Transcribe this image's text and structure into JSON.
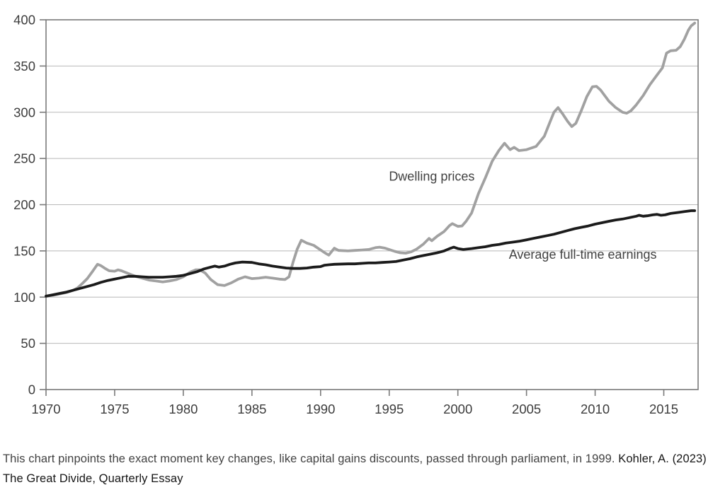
{
  "chart_data": {
    "type": "line",
    "title": "",
    "xlabel": "",
    "ylabel": "",
    "xlim": [
      1970,
      2017.5
    ],
    "ylim": [
      0,
      400
    ],
    "x_ticks": [
      "1970",
      "1975",
      "1980",
      "1985",
      "1990",
      "1995",
      "2000",
      "2005",
      "2010",
      "2015"
    ],
    "x_tick_values": [
      1970,
      1975,
      1980,
      1985,
      1990,
      1995,
      2000,
      2005,
      2010,
      2015
    ],
    "y_ticks": [
      "0",
      "50",
      "100",
      "150",
      "200",
      "250",
      "300",
      "350",
      "400"
    ],
    "y_tick_values": [
      0,
      50,
      100,
      150,
      200,
      250,
      300,
      350,
      400
    ],
    "grid": "horizontal",
    "legend_position": "inline-annotations",
    "colors": {
      "grid": "#b8b8b8",
      "axis": "#7a7a7a",
      "tick_text": "#3d3d3d",
      "dwelling_line": "#a1a1a1",
      "earnings_line": "#1b1b1b"
    },
    "series": [
      {
        "id": "dwelling-prices",
        "name": "Dwelling prices",
        "color": "#a1a1a1",
        "label_pos": [
          1998.1,
          226
        ],
        "points": [
          [
            1970,
            101
          ],
          [
            1970.5,
            102
          ],
          [
            1971,
            103.5
          ],
          [
            1971.5,
            105
          ],
          [
            1972,
            107.5
          ],
          [
            1972.3,
            110
          ],
          [
            1972.6,
            114
          ],
          [
            1973,
            120
          ],
          [
            1973.4,
            128
          ],
          [
            1973.75,
            135.5
          ],
          [
            1974,
            134
          ],
          [
            1974.3,
            131
          ],
          [
            1974.6,
            128.5
          ],
          [
            1975,
            128
          ],
          [
            1975.25,
            129.5
          ],
          [
            1975.5,
            128.5
          ],
          [
            1976,
            125.5
          ],
          [
            1976.5,
            122.5
          ],
          [
            1977,
            120.5
          ],
          [
            1977.5,
            118.5
          ],
          [
            1978,
            117.5
          ],
          [
            1978.5,
            116.5
          ],
          [
            1979,
            117.5
          ],
          [
            1979.5,
            119
          ],
          [
            1980,
            122
          ],
          [
            1980.5,
            127
          ],
          [
            1980.9,
            129.5
          ],
          [
            1981.2,
            129.5
          ],
          [
            1981.6,
            126
          ],
          [
            1982,
            119
          ],
          [
            1982.5,
            113.5
          ],
          [
            1983,
            112.5
          ],
          [
            1983.5,
            115.5
          ],
          [
            1984,
            119.5
          ],
          [
            1984.5,
            122
          ],
          [
            1985,
            120
          ],
          [
            1985.5,
            120.5
          ],
          [
            1986,
            121.5
          ],
          [
            1986.5,
            120.5
          ],
          [
            1987,
            119.5
          ],
          [
            1987.4,
            119
          ],
          [
            1987.7,
            122
          ],
          [
            1988,
            138
          ],
          [
            1988.3,
            152
          ],
          [
            1988.6,
            161.5
          ],
          [
            1989,
            158.5
          ],
          [
            1989.5,
            156
          ],
          [
            1990,
            151
          ],
          [
            1990.35,
            147.5
          ],
          [
            1990.6,
            145.5
          ],
          [
            1991,
            153
          ],
          [
            1991.3,
            150.5
          ],
          [
            1992,
            150
          ],
          [
            1992.5,
            150.5
          ],
          [
            1993,
            151
          ],
          [
            1993.5,
            151.5
          ],
          [
            1994,
            153.5
          ],
          [
            1994.3,
            154
          ],
          [
            1994.7,
            153
          ],
          [
            1995,
            151.5
          ],
          [
            1995.4,
            149.5
          ],
          [
            1995.8,
            148
          ],
          [
            1996.2,
            147.5
          ],
          [
            1996.6,
            149
          ],
          [
            1997,
            152
          ],
          [
            1997.5,
            157.5
          ],
          [
            1997.9,
            163.5
          ],
          [
            1998.1,
            161
          ],
          [
            1998.5,
            166
          ],
          [
            1999,
            171
          ],
          [
            1999.4,
            177.5
          ],
          [
            1999.6,
            179.5
          ],
          [
            2000,
            176.5
          ],
          [
            2000.3,
            177
          ],
          [
            2000.6,
            182
          ],
          [
            2001,
            191
          ],
          [
            2001.5,
            212
          ],
          [
            2002,
            229
          ],
          [
            2002.5,
            247
          ],
          [
            2003,
            259
          ],
          [
            2003.4,
            266.5
          ],
          [
            2003.8,
            259.5
          ],
          [
            2004.1,
            262
          ],
          [
            2004.45,
            258.5
          ],
          [
            2005,
            259.5
          ],
          [
            2005.7,
            263
          ],
          [
            2006.3,
            274
          ],
          [
            2006.7,
            289
          ],
          [
            2007,
            300
          ],
          [
            2007.3,
            305
          ],
          [
            2007.6,
            299
          ],
          [
            2008,
            290
          ],
          [
            2008.3,
            284.5
          ],
          [
            2008.6,
            288
          ],
          [
            2009,
            302
          ],
          [
            2009.4,
            317
          ],
          [
            2009.8,
            327.5
          ],
          [
            2010.1,
            328
          ],
          [
            2010.4,
            324
          ],
          [
            2011,
            312
          ],
          [
            2011.5,
            305
          ],
          [
            2012,
            300
          ],
          [
            2012.3,
            299
          ],
          [
            2012.6,
            301.5
          ],
          [
            2013,
            308
          ],
          [
            2013.5,
            318
          ],
          [
            2014,
            330
          ],
          [
            2014.5,
            340
          ],
          [
            2014.9,
            348
          ],
          [
            2015.2,
            364
          ],
          [
            2015.5,
            366.5
          ],
          [
            2015.9,
            367
          ],
          [
            2016.2,
            371
          ],
          [
            2016.5,
            379
          ],
          [
            2016.8,
            389
          ],
          [
            2017,
            393.5
          ],
          [
            2017.25,
            396.5
          ]
        ]
      },
      {
        "id": "average-full-time-earnings",
        "name": "Average full-time earnings",
        "color": "#1b1b1b",
        "label_pos": [
          2009.1,
          141.5
        ],
        "points": [
          [
            1970,
            101
          ],
          [
            1970.5,
            102.5
          ],
          [
            1971,
            104
          ],
          [
            1971.5,
            105.5
          ],
          [
            1972,
            107.5
          ],
          [
            1972.5,
            109.5
          ],
          [
            1973,
            111.5
          ],
          [
            1973.5,
            113.5
          ],
          [
            1974,
            116
          ],
          [
            1974.5,
            118
          ],
          [
            1975,
            119.5
          ],
          [
            1975.5,
            121
          ],
          [
            1976,
            122.5
          ],
          [
            1976.5,
            122.5
          ],
          [
            1977,
            122
          ],
          [
            1977.5,
            121.5
          ],
          [
            1978,
            121.5
          ],
          [
            1978.5,
            121.5
          ],
          [
            1979,
            122
          ],
          [
            1979.5,
            122.5
          ],
          [
            1980,
            123.5
          ],
          [
            1980.5,
            125.5
          ],
          [
            1981,
            127.5
          ],
          [
            1981.5,
            130.5
          ],
          [
            1982,
            132.5
          ],
          [
            1982.3,
            133.5
          ],
          [
            1982.6,
            132.5
          ],
          [
            1983,
            133.5
          ],
          [
            1983.4,
            135.5
          ],
          [
            1983.8,
            137
          ],
          [
            1984.3,
            138
          ],
          [
            1985,
            137.5
          ],
          [
            1985.5,
            136
          ],
          [
            1986,
            135
          ],
          [
            1986.5,
            133.5
          ],
          [
            1987,
            132.5
          ],
          [
            1987.5,
            131.5
          ],
          [
            1988,
            131
          ],
          [
            1988.5,
            131
          ],
          [
            1989,
            131.5
          ],
          [
            1989.5,
            132.5
          ],
          [
            1990,
            133
          ],
          [
            1990.3,
            134.5
          ],
          [
            1990.6,
            135
          ],
          [
            1991,
            135.5
          ],
          [
            1992,
            136
          ],
          [
            1992.5,
            136
          ],
          [
            1993,
            136.5
          ],
          [
            1993.5,
            137
          ],
          [
            1994,
            137
          ],
          [
            1994.5,
            137.5
          ],
          [
            1995,
            138
          ],
          [
            1995.5,
            138.5
          ],
          [
            1996,
            140
          ],
          [
            1996.5,
            141.5
          ],
          [
            1997,
            143.5
          ],
          [
            1997.5,
            145
          ],
          [
            1998,
            146.5
          ],
          [
            1998.5,
            148
          ],
          [
            1999,
            150
          ],
          [
            1999.4,
            152.5
          ],
          [
            1999.7,
            154
          ],
          [
            2000,
            152.5
          ],
          [
            2000.4,
            151.5
          ],
          [
            2001,
            152.5
          ],
          [
            2001.5,
            153.5
          ],
          [
            2002,
            154.5
          ],
          [
            2002.5,
            156
          ],
          [
            2003,
            157
          ],
          [
            2003.5,
            158.5
          ],
          [
            2004,
            159.5
          ],
          [
            2004.5,
            160.5
          ],
          [
            2005,
            162
          ],
          [
            2005.5,
            163.5
          ],
          [
            2006,
            165
          ],
          [
            2006.5,
            166.5
          ],
          [
            2007,
            168
          ],
          [
            2007.5,
            170
          ],
          [
            2008,
            172
          ],
          [
            2008.5,
            174
          ],
          [
            2009,
            175.5
          ],
          [
            2009.5,
            177
          ],
          [
            2010,
            179
          ],
          [
            2010.5,
            180.5
          ],
          [
            2011,
            182
          ],
          [
            2011.5,
            183.5
          ],
          [
            2012,
            184.5
          ],
          [
            2012.5,
            186
          ],
          [
            2013,
            187.5
          ],
          [
            2013.2,
            188.5
          ],
          [
            2013.5,
            187.5
          ],
          [
            2013.8,
            188
          ],
          [
            2014.2,
            189
          ],
          [
            2014.5,
            189.5
          ],
          [
            2014.8,
            188.5
          ],
          [
            2015.1,
            189
          ],
          [
            2015.5,
            190.5
          ],
          [
            2016,
            191.5
          ],
          [
            2016.5,
            192.5
          ],
          [
            2017,
            193.5
          ],
          [
            2017.25,
            193.5
          ]
        ]
      }
    ]
  },
  "caption": {
    "text": "This chart pinpoints the exact moment key changes, like capital gains discounts, passed through parliament, in 1999. ",
    "source": "Kohler, A. (2023) The Great Divide, Quarterly Essay"
  }
}
